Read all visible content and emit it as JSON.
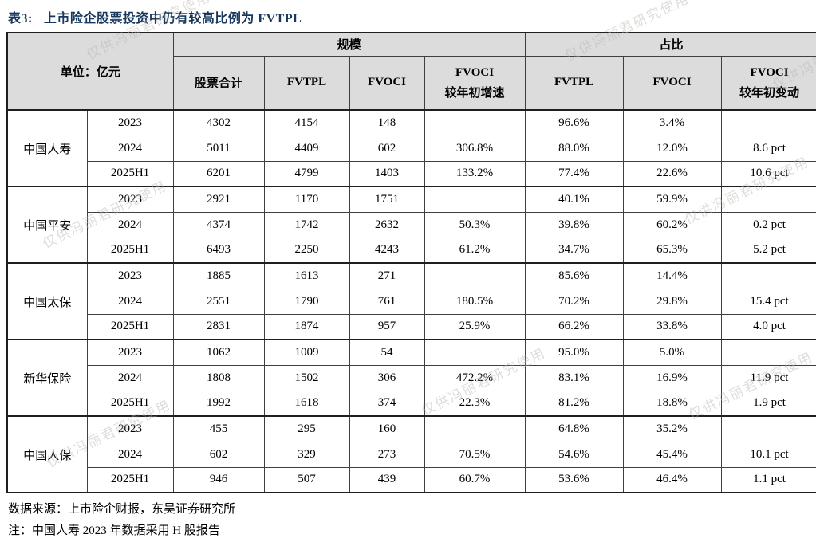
{
  "title": {
    "prefix": "表3:",
    "text": "上市险企股票投资中仍有较高比例为 FVTPL"
  },
  "table": {
    "unit_label": "单位：亿元",
    "group_headers": {
      "scale": "规模",
      "share": "占比"
    },
    "headers": {
      "total": "股票合计",
      "fvtpl_scale": "FVTPL",
      "fvoci_scale": "FVOCI",
      "fvoci_growth_line1": "FVOCI",
      "fvoci_growth_line2": "较年初增速",
      "fvtpl_share": "FVTPL",
      "fvoci_share": "FVOCI",
      "fvoci_change_line1": "FVOCI",
      "fvoci_change_line2": "较年初变动"
    },
    "groups": [
      {
        "company": "中国人寿",
        "rows": [
          {
            "year": "2023",
            "values": [
              "4302",
              "4154",
              "148",
              "",
              "96.6%",
              "3.4%",
              ""
            ]
          },
          {
            "year": "2024",
            "values": [
              "5011",
              "4409",
              "602",
              "306.8%",
              "88.0%",
              "12.0%",
              "8.6 pct"
            ]
          },
          {
            "year": "2025H1",
            "values": [
              "6201",
              "4799",
              "1403",
              "133.2%",
              "77.4%",
              "22.6%",
              "10.6 pct"
            ]
          }
        ]
      },
      {
        "company": "中国平安",
        "rows": [
          {
            "year": "2023",
            "values": [
              "2921",
              "1170",
              "1751",
              "",
              "40.1%",
              "59.9%",
              ""
            ]
          },
          {
            "year": "2024",
            "values": [
              "4374",
              "1742",
              "2632",
              "50.3%",
              "39.8%",
              "60.2%",
              "0.2 pct"
            ]
          },
          {
            "year": "2025H1",
            "values": [
              "6493",
              "2250",
              "4243",
              "61.2%",
              "34.7%",
              "65.3%",
              "5.2 pct"
            ]
          }
        ]
      },
      {
        "company": "中国太保",
        "rows": [
          {
            "year": "2023",
            "values": [
              "1885",
              "1613",
              "271",
              "",
              "85.6%",
              "14.4%",
              ""
            ]
          },
          {
            "year": "2024",
            "values": [
              "2551",
              "1790",
              "761",
              "180.5%",
              "70.2%",
              "29.8%",
              "15.4 pct"
            ]
          },
          {
            "year": "2025H1",
            "values": [
              "2831",
              "1874",
              "957",
              "25.9%",
              "66.2%",
              "33.8%",
              "4.0 pct"
            ]
          }
        ]
      },
      {
        "company": "新华保险",
        "rows": [
          {
            "year": "2023",
            "values": [
              "1062",
              "1009",
              "54",
              "",
              "95.0%",
              "5.0%",
              ""
            ]
          },
          {
            "year": "2024",
            "values": [
              "1808",
              "1502",
              "306",
              "472.2%",
              "83.1%",
              "16.9%",
              "11.9 pct"
            ]
          },
          {
            "year": "2025H1",
            "values": [
              "1992",
              "1618",
              "374",
              "22.3%",
              "81.2%",
              "18.8%",
              "1.9 pct"
            ]
          }
        ]
      },
      {
        "company": "中国人保",
        "rows": [
          {
            "year": "2023",
            "values": [
              "455",
              "295",
              "160",
              "",
              "64.8%",
              "35.2%",
              ""
            ]
          },
          {
            "year": "2024",
            "values": [
              "602",
              "329",
              "273",
              "70.5%",
              "54.6%",
              "45.4%",
              "10.1 pct"
            ]
          },
          {
            "year": "2025H1",
            "values": [
              "946",
              "507",
              "439",
              "60.7%",
              "53.6%",
              "46.4%",
              "1.1 pct"
            ]
          }
        ]
      }
    ]
  },
  "notes": {
    "source": "数据来源：上市险企财报，东吴证券研究所",
    "remark": "注：中国人寿 2023 年数据采用 H 股报告"
  },
  "watermark": {
    "text": "仅供冯丽君研究使用"
  },
  "colors": {
    "title": "#17375d",
    "header_bg": "#dcdcdc",
    "border": "#3f3f3f",
    "border_strong": "#1f1f1f",
    "watermark": "#b9b5ae"
  }
}
